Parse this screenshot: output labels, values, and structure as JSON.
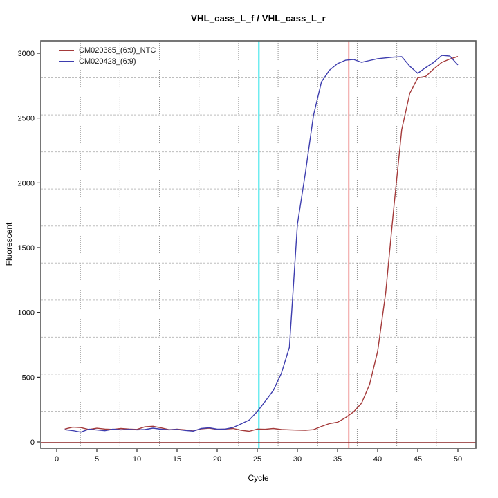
{
  "chart_data": {
    "type": "line",
    "title": "VHL_cass_L_f / VHL_cass_L_r",
    "xlabel": "Cycle",
    "ylabel": "Fluorescent",
    "x_ticks": [
      0,
      5,
      10,
      15,
      20,
      25,
      30,
      35,
      40,
      45,
      50
    ],
    "y_ticks": [
      0,
      500,
      1000,
      1500,
      2000,
      2500,
      3000
    ],
    "xlim": [
      -2.0,
      52.2
    ],
    "ylim": [
      -48,
      3097
    ],
    "grid": {
      "divisions": 11,
      "vertical_style": "dotted",
      "horizontal_style": "dashed",
      "vertical_color": "#8f8f8f",
      "horizontal_color": "#bdbdbd"
    },
    "legend_position": "top-left-inside",
    "cycles": [
      1,
      2,
      3,
      4,
      5,
      6,
      7,
      8,
      9,
      10,
      11,
      12,
      13,
      14,
      15,
      16,
      17,
      18,
      19,
      20,
      21,
      22,
      23,
      24,
      25,
      26,
      27,
      28,
      29,
      30,
      31,
      32,
      33,
      34,
      35,
      36,
      37,
      38,
      39,
      40,
      41,
      42,
      43,
      44,
      45,
      46,
      47,
      48,
      49,
      50
    ],
    "series": [
      {
        "name": "CM020385_(6:9)_NTC",
        "color": "#a43a3a",
        "values": [
          100,
          114,
          111,
          96,
          106,
          100,
          97,
          104,
          100,
          97,
          117,
          121,
          109,
          95,
          99,
          94,
          86,
          101,
          106,
          97,
          100,
          104,
          90,
          83,
          100,
          98,
          104,
          96,
          94,
          92,
          91,
          95,
          120,
          142,
          152,
          188,
          232,
          300,
          445,
          700,
          1150,
          1800,
          2410,
          2690,
          2810,
          2822,
          2880,
          2930,
          2955,
          2975
        ]
      },
      {
        "name": "CM020428_(6:9)",
        "color": "#3d3dae",
        "values": [
          95,
          88,
          76,
          99,
          93,
          87,
          99,
          94,
          97,
          94,
          96,
          107,
          99,
          94,
          97,
          89,
          84,
          104,
          110,
          99,
          100,
          112,
          140,
          170,
          235,
          315,
          398,
          530,
          730,
          1680,
          2080,
          2520,
          2780,
          2870,
          2920,
          2946,
          2952,
          2930,
          2944,
          2958,
          2964,
          2970,
          2974,
          2900,
          2845,
          2890,
          2930,
          2984,
          2978,
          2910
        ]
      }
    ],
    "threshold_line": {
      "value": 0,
      "color": "#8b2323"
    },
    "ct_lines": [
      {
        "cycle": 25.2,
        "color": "#2de4e8"
      },
      {
        "cycle": 36.4,
        "color": "#f09d9d"
      }
    ]
  }
}
